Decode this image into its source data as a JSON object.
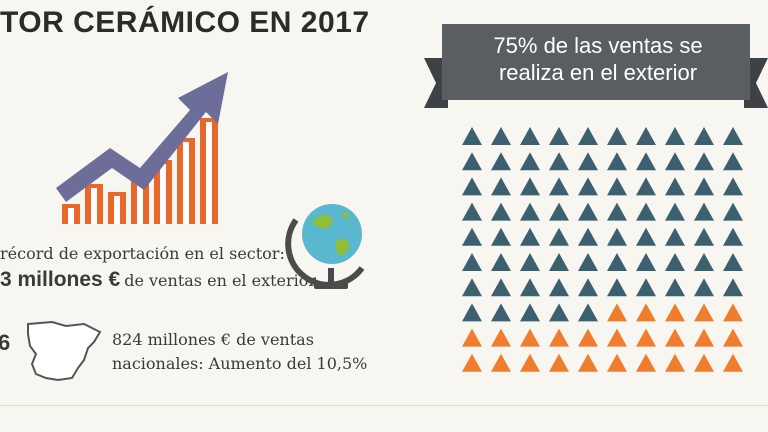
{
  "title": "TOR CERÁMICO EN 2017",
  "left": {
    "record_text": "récord de exportación en el sector:",
    "export_amount": "3 millones €",
    "export_suffix": "de ventas en el exterior",
    "national_digit": "6",
    "national_line1": "824 millones € de ventas",
    "national_line2": "nacionales: Aumento del 10,5%"
  },
  "right": {
    "banner_line1": "75% de las ventas se",
    "banner_line2": "realiza en el exterior",
    "grid": {
      "rows": 10,
      "cols": 10,
      "exterior_count": 75
    },
    "colors": {
      "exterior": "#3d6070",
      "nacional": "#ef7d2d",
      "banner": "#5a5e63"
    }
  },
  "icons": {
    "growth": "growth-chart-icon",
    "globe": "globe-icon",
    "spain": "spain-map-icon"
  }
}
